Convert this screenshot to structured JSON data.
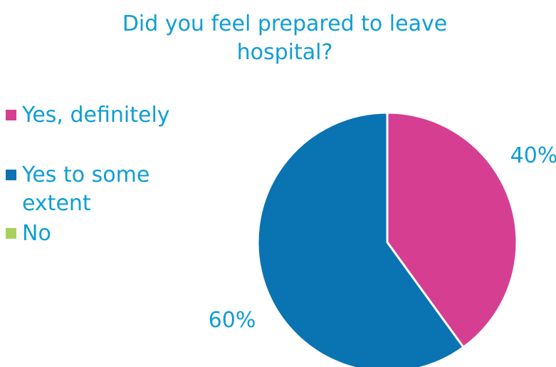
{
  "colors": {
    "text": "#0f9ed5"
  },
  "chart_data": {
    "type": "pie",
    "title": "Did you feel prepared to leave hospital?",
    "legend_position": "left",
    "slices": [
      {
        "label": "Yes, definitely",
        "value": 40,
        "display": "40%",
        "color": "#d63f91"
      },
      {
        "label": "Yes to some extent",
        "value": 60,
        "display": "60%",
        "color": "#0a73b2"
      },
      {
        "label": "No",
        "value": 0,
        "display": "",
        "color": "#a9cf5e"
      }
    ]
  }
}
